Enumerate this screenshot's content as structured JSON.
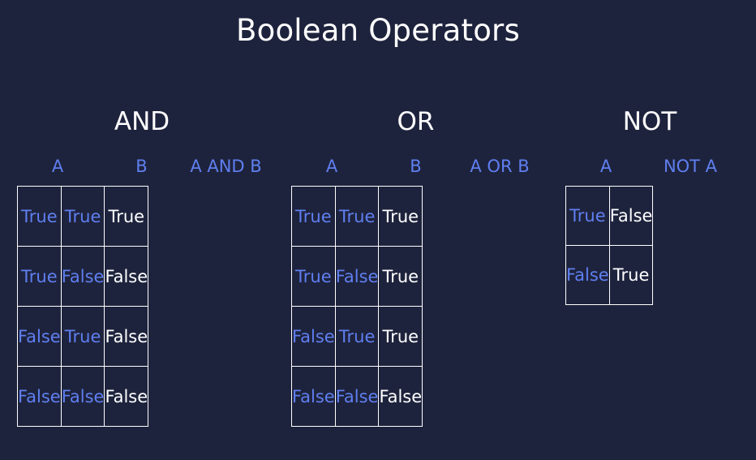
{
  "title": "Boolean Operators",
  "colors": {
    "background": "#1e233d",
    "input_text": "#5f7ff0",
    "output_text": "#ffffff",
    "grid_lines": "#ffffff"
  },
  "and": {
    "title": "AND",
    "headers": [
      "A",
      "B",
      "A AND B"
    ],
    "rows": [
      [
        "True",
        "True",
        "True"
      ],
      [
        "True",
        "False",
        "False"
      ],
      [
        "False",
        "True",
        "False"
      ],
      [
        "False",
        "False",
        "False"
      ]
    ]
  },
  "or": {
    "title": "OR",
    "headers": [
      "A",
      "B",
      "A OR B"
    ],
    "rows": [
      [
        "True",
        "True",
        "True"
      ],
      [
        "True",
        "False",
        "True"
      ],
      [
        "False",
        "True",
        "True"
      ],
      [
        "False",
        "False",
        "False"
      ]
    ]
  },
  "not": {
    "title": "NOT",
    "headers": [
      "A",
      "NOT A"
    ],
    "rows": [
      [
        "True",
        "False"
      ],
      [
        "False",
        "True"
      ]
    ]
  }
}
